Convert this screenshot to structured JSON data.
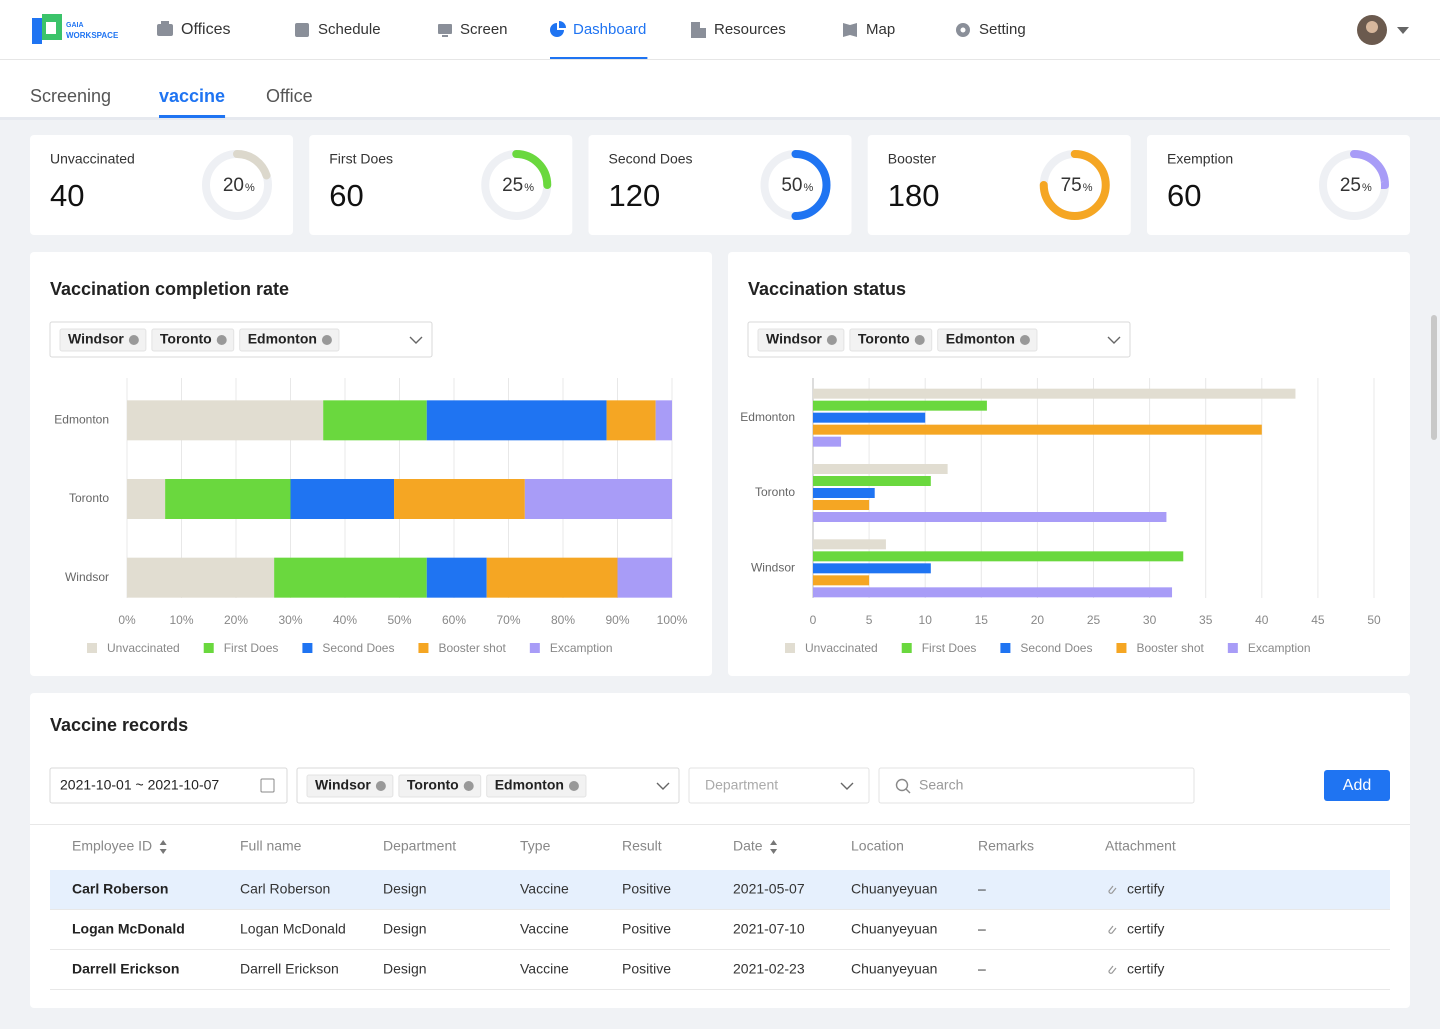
{
  "header": {
    "logo": [
      "GAIA",
      "WORKSPACE"
    ],
    "nav": [
      "Offices",
      "Schedule",
      "Screen",
      "Dashboard",
      "Resources",
      "Map",
      "Setting"
    ],
    "active_nav": 3
  },
  "tabs": {
    "items": [
      "Screening",
      "vaccine",
      "Office"
    ],
    "active": 1
  },
  "stats": {
    "unit": "%",
    "cards": [
      {
        "label": "Unvaccinated",
        "value": 40,
        "percent": 20,
        "color": "#dcd8cc"
      },
      {
        "label": "First Does",
        "value": 60,
        "percent": 25,
        "color": "#6ad83e"
      },
      {
        "label": "Second Does",
        "value": 120,
        "percent": 50,
        "color": "#1f74f2"
      },
      {
        "label": "Booster",
        "value": 180,
        "percent": 75,
        "color": "#f5a623"
      },
      {
        "label": "Exemption",
        "value": 60,
        "percent": 25,
        "color": "#a89cf7"
      }
    ]
  },
  "chart_filters": [
    [
      "Windsor",
      "Toronto",
      "Edmonton"
    ],
    [
      "Windsor",
      "Toronto",
      "Edmonton"
    ]
  ],
  "chart_data": [
    {
      "type": "bar",
      "orientation": "horizontal",
      "stacked": true,
      "title": "Vaccination completion rate",
      "categories": [
        "Edmonton",
        "Toronto",
        "Windsor"
      ],
      "series": [
        {
          "name": "Unvaccinated",
          "color": "#e1ddd1",
          "values": [
            36,
            7,
            27
          ]
        },
        {
          "name": "First Does",
          "color": "#6ad83e",
          "values": [
            19,
            23,
            28
          ]
        },
        {
          "name": "Second Does",
          "color": "#1f74f2",
          "values": [
            33,
            19,
            11
          ]
        },
        {
          "name": "Booster shot",
          "color": "#f5a623",
          "values": [
            9,
            24,
            24
          ]
        },
        {
          "name": "Excamption",
          "color": "#a89cf7",
          "values": [
            3,
            27,
            10
          ]
        }
      ],
      "xlim": [
        0,
        100
      ],
      "xticks": [
        {
          "value": 0,
          "label": "0%"
        },
        {
          "value": 10,
          "label": "10%"
        },
        {
          "value": 20,
          "label": "20%"
        },
        {
          "value": 30,
          "label": "30%"
        },
        {
          "value": 40,
          "label": "40%"
        },
        {
          "value": 50,
          "label": "50%"
        },
        {
          "value": 60,
          "label": "60%"
        },
        {
          "value": 70,
          "label": "70%"
        },
        {
          "value": 80,
          "label": "80%"
        },
        {
          "value": 90,
          "label": "90%"
        },
        {
          "value": 100,
          "label": "100%"
        }
      ],
      "grid": true,
      "legend": "bottom"
    },
    {
      "type": "bar",
      "orientation": "horizontal",
      "stacked": false,
      "title": "Vaccination status",
      "categories": [
        "Edmonton",
        "Toronto",
        "Windsor"
      ],
      "series": [
        {
          "name": "Unvaccinated",
          "color": "#e1ddd1",
          "values": [
            43,
            12,
            6.5
          ]
        },
        {
          "name": "First Does",
          "color": "#6ad83e",
          "values": [
            15.5,
            10.5,
            33
          ]
        },
        {
          "name": "Second Does",
          "color": "#1f74f2",
          "values": [
            10,
            5.5,
            10.5
          ]
        },
        {
          "name": "Booster shot",
          "color": "#f5a623",
          "values": [
            40,
            5,
            5
          ]
        },
        {
          "name": "Excamption",
          "color": "#a89cf7",
          "values": [
            2.5,
            31.5,
            32
          ]
        }
      ],
      "xlim": [
        0,
        50
      ],
      "xticks": [
        0,
        5,
        10,
        15,
        20,
        25,
        30,
        35,
        40,
        45,
        50
      ],
      "grid": true,
      "legend": "bottom"
    }
  ],
  "records": {
    "title": "Vaccine records",
    "date_range": "2021-10-01 ~ 2021-10-07",
    "cities": [
      "Windsor",
      "Toronto",
      "Edmonton"
    ],
    "department": "Department",
    "search": "Search",
    "add": "Add",
    "columns": [
      "Employee ID",
      "Full name",
      "Department",
      "Type",
      "Result",
      "Date",
      "Location",
      "Remarks",
      "Attachment"
    ],
    "sortable": [
      0,
      5
    ],
    "rows": [
      [
        "Carl Roberson",
        "Carl Roberson",
        "Design",
        "Vaccine",
        "Positive",
        "2021-05-07",
        "Chuanyeyuan",
        "–",
        "certify"
      ],
      [
        "Logan McDonald",
        "Logan McDonald",
        "Design",
        "Vaccine",
        "Positive",
        "2021-07-10",
        "Chuanyeyuan",
        "–",
        "certify"
      ],
      [
        "Darrell Erickson",
        "Darrell Erickson",
        "Design",
        "Vaccine",
        "Positive",
        "2021-02-23",
        "Chuanyeyuan",
        "–",
        "certify"
      ]
    ]
  }
}
